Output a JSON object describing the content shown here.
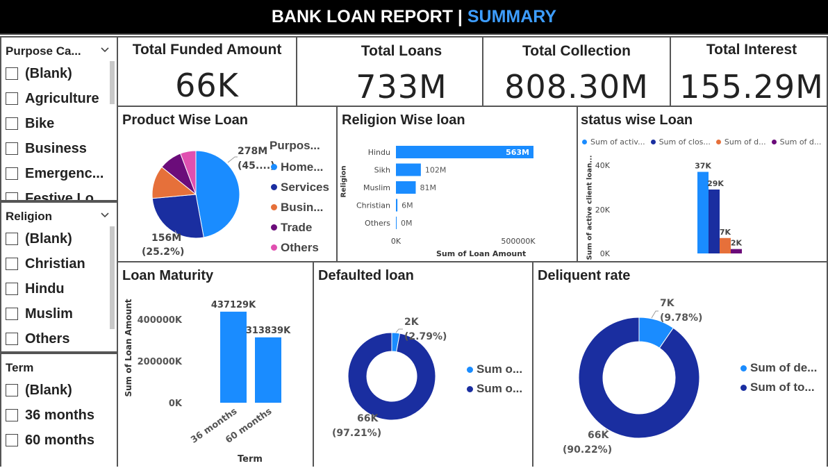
{
  "header": {
    "title": "BANK LOAN REPORT",
    "separator": " | ",
    "subtitle": "SUMMARY"
  },
  "colors": {
    "blue": "#1a8cff",
    "navy": "#1a2ea0",
    "orange": "#e6703a",
    "purple": "#6b0c7a",
    "pink": "#e050b0",
    "title_blue": "#3d9dff"
  },
  "slicers": {
    "purpose": {
      "title": "Purpose Ca...",
      "options": [
        "(Blank)",
        "Agriculture",
        "Bike",
        "Business",
        "Emergenc...",
        "Festive Lo..."
      ]
    },
    "religion": {
      "title": "Religion",
      "options": [
        "(Blank)",
        "Christian",
        "Hindu",
        "Muslim",
        "Others"
      ]
    },
    "term": {
      "title": "Term",
      "options": [
        "(Blank)",
        "36 months",
        "60 months"
      ]
    }
  },
  "kpis": [
    {
      "title": "Total Funded Amount",
      "value": "66K"
    },
    {
      "title": "Total Loans",
      "value": "733M"
    },
    {
      "title": "Total Collection",
      "value": "808.30M"
    },
    {
      "title": "Total Interest",
      "value": "155.29M"
    }
  ],
  "product_wise": {
    "title": "Product Wise Loan",
    "legend_title": "Purpos...",
    "legend": [
      "Home...",
      "Services",
      "Busin...",
      "Trade",
      "Others"
    ],
    "label_top_value": "278M",
    "label_top_pct": "(45....)",
    "label_bottom_value": "156M",
    "label_bottom_pct": "(25.2%)",
    "chart_data": {
      "type": "pie",
      "labels": [
        "Home...",
        "Services",
        "Busin...",
        "Trade",
        "Others"
      ],
      "values": [
        278,
        156,
        72,
        50,
        34
      ],
      "percents": [
        45.0,
        25.2,
        12.0,
        8.0,
        5.5
      ]
    }
  },
  "religion_wise": {
    "title": "Religion Wise loan",
    "ylabel": "Religion",
    "xlabel": "Sum of Loan Amount",
    "xticks": [
      "0K",
      "500000K"
    ],
    "chart_data": {
      "type": "bar",
      "categories": [
        "Hindu",
        "Sikh",
        "Muslim",
        "Christian",
        "Others"
      ],
      "values": [
        563,
        102,
        81,
        6,
        0
      ],
      "data_labels": [
        "563M",
        "102M",
        "81M",
        "6M",
        "0M"
      ],
      "xlim": [
        0,
        563
      ]
    }
  },
  "status_wise": {
    "title": "status wise Loan",
    "legend": [
      "Sum of activ...",
      "Sum of clos...",
      "Sum of d...",
      "Sum of d..."
    ],
    "ylabel": "Sum of active client loan...",
    "yticks": [
      "40K",
      "20K",
      "0K"
    ],
    "chart_data": {
      "type": "bar",
      "series": [
        {
          "name": "Sum of activ...",
          "values": [
            37
          ]
        },
        {
          "name": "Sum of clos...",
          "values": [
            29
          ]
        },
        {
          "name": "Sum of d...",
          "values": [
            7
          ]
        },
        {
          "name": "Sum of d...",
          "values": [
            2
          ]
        }
      ],
      "data_labels": [
        "37K",
        "29K",
        "7K",
        "2K"
      ],
      "ylim": [
        0,
        40
      ]
    }
  },
  "loan_maturity": {
    "title": "Loan Maturity",
    "ylabel": "Sum of Loan Amount",
    "xlabel": "Term",
    "yticks": [
      "400000K",
      "200000K",
      "0K"
    ],
    "chart_data": {
      "type": "bar",
      "categories": [
        "36 months",
        "60 months"
      ],
      "values": [
        437129,
        313839
      ],
      "data_labels": [
        "437129K",
        "313839K"
      ],
      "ylim": [
        0,
        400000
      ]
    }
  },
  "defaulted": {
    "title": "Defaulted loan",
    "legend": [
      "Sum o...",
      "Sum o..."
    ],
    "label_small_value": "2K",
    "label_small_pct": "(2.79%)",
    "label_big_value": "66K",
    "label_big_pct": "(97.21%)",
    "chart_data": {
      "type": "pie",
      "labels": [
        "Sum o...",
        "Sum o..."
      ],
      "values": [
        2,
        66
      ],
      "percents": [
        2.79,
        97.21
      ]
    }
  },
  "delinquent": {
    "title": "Deliquent rate",
    "legend": [
      "Sum of de...",
      "Sum of to..."
    ],
    "label_small_value": "7K",
    "label_small_pct": "(9.78%)",
    "label_big_value": "66K",
    "label_big_pct": "(90.22%)",
    "chart_data": {
      "type": "pie",
      "labels": [
        "Sum of de...",
        "Sum of to..."
      ],
      "values": [
        7,
        66
      ],
      "percents": [
        9.78,
        90.22
      ]
    }
  }
}
